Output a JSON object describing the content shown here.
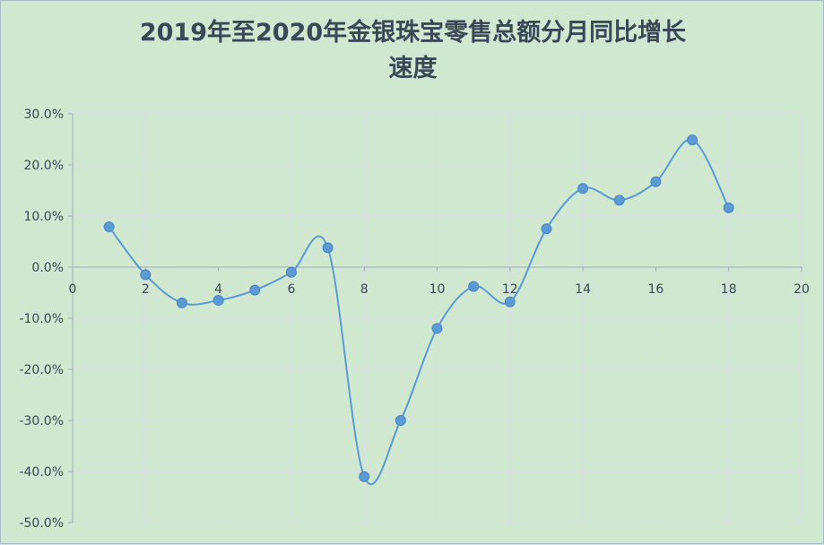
{
  "chart_data": {
    "type": "scatter",
    "title_line1": "2019年至2020年金银珠宝零售总额分月同比增长",
    "title_line2": "速度",
    "x": [
      1,
      2,
      3,
      4,
      5,
      6,
      7,
      8,
      9,
      10,
      11,
      12,
      13,
      14,
      15,
      16,
      17,
      18
    ],
    "y": [
      7.9,
      -1.5,
      -7.0,
      -6.5,
      -4.5,
      -1.0,
      3.8,
      -41.0,
      -30.0,
      -12.0,
      -3.8,
      -6.8,
      7.5,
      15.4,
      13.1,
      16.7,
      24.9,
      11.6
    ],
    "xlim": [
      0,
      20
    ],
    "ylim": [
      -50,
      30
    ],
    "x_ticks": [
      "0",
      "2",
      "4",
      "6",
      "8",
      "10",
      "12",
      "14",
      "16",
      "18",
      "20"
    ],
    "y_ticks": [
      "30.0%",
      "20.0%",
      "10.0%",
      "0.0%",
      "-10.0%",
      "-20.0%",
      "-30.0%",
      "-40.0%",
      "-50.0%"
    ],
    "line_style": "smooth",
    "grid": true,
    "colors": {
      "series": "#5b9bd5",
      "grid": "#d9dde6",
      "axis": "#a3acb9",
      "background": "#cfe8cf",
      "text": "#3b4858"
    }
  }
}
